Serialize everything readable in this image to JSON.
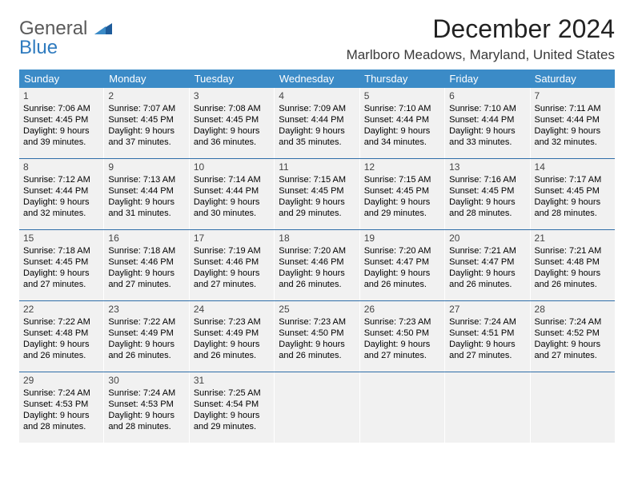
{
  "logo": {
    "line1": "General",
    "line2": "Blue"
  },
  "title": "December 2024",
  "location": "Marlboro Meadows, Maryland, United States",
  "colors": {
    "header_bg": "#3b8bc7",
    "header_text": "#ffffff",
    "cell_bg": "#f1f1f1",
    "week_border": "#2f6ea8",
    "logo_gray": "#5a5a5a",
    "logo_blue": "#2f7bbf"
  },
  "weekdays": [
    "Sunday",
    "Monday",
    "Tuesday",
    "Wednesday",
    "Thursday",
    "Friday",
    "Saturday"
  ],
  "weeks": [
    [
      {
        "day": "1",
        "sunrise": "Sunrise: 7:06 AM",
        "sunset": "Sunset: 4:45 PM",
        "daylight": "Daylight: 9 hours and 39 minutes."
      },
      {
        "day": "2",
        "sunrise": "Sunrise: 7:07 AM",
        "sunset": "Sunset: 4:45 PM",
        "daylight": "Daylight: 9 hours and 37 minutes."
      },
      {
        "day": "3",
        "sunrise": "Sunrise: 7:08 AM",
        "sunset": "Sunset: 4:45 PM",
        "daylight": "Daylight: 9 hours and 36 minutes."
      },
      {
        "day": "4",
        "sunrise": "Sunrise: 7:09 AM",
        "sunset": "Sunset: 4:44 PM",
        "daylight": "Daylight: 9 hours and 35 minutes."
      },
      {
        "day": "5",
        "sunrise": "Sunrise: 7:10 AM",
        "sunset": "Sunset: 4:44 PM",
        "daylight": "Daylight: 9 hours and 34 minutes."
      },
      {
        "day": "6",
        "sunrise": "Sunrise: 7:10 AM",
        "sunset": "Sunset: 4:44 PM",
        "daylight": "Daylight: 9 hours and 33 minutes."
      },
      {
        "day": "7",
        "sunrise": "Sunrise: 7:11 AM",
        "sunset": "Sunset: 4:44 PM",
        "daylight": "Daylight: 9 hours and 32 minutes."
      }
    ],
    [
      {
        "day": "8",
        "sunrise": "Sunrise: 7:12 AM",
        "sunset": "Sunset: 4:44 PM",
        "daylight": "Daylight: 9 hours and 32 minutes."
      },
      {
        "day": "9",
        "sunrise": "Sunrise: 7:13 AM",
        "sunset": "Sunset: 4:44 PM",
        "daylight": "Daylight: 9 hours and 31 minutes."
      },
      {
        "day": "10",
        "sunrise": "Sunrise: 7:14 AM",
        "sunset": "Sunset: 4:44 PM",
        "daylight": "Daylight: 9 hours and 30 minutes."
      },
      {
        "day": "11",
        "sunrise": "Sunrise: 7:15 AM",
        "sunset": "Sunset: 4:45 PM",
        "daylight": "Daylight: 9 hours and 29 minutes."
      },
      {
        "day": "12",
        "sunrise": "Sunrise: 7:15 AM",
        "sunset": "Sunset: 4:45 PM",
        "daylight": "Daylight: 9 hours and 29 minutes."
      },
      {
        "day": "13",
        "sunrise": "Sunrise: 7:16 AM",
        "sunset": "Sunset: 4:45 PM",
        "daylight": "Daylight: 9 hours and 28 minutes."
      },
      {
        "day": "14",
        "sunrise": "Sunrise: 7:17 AM",
        "sunset": "Sunset: 4:45 PM",
        "daylight": "Daylight: 9 hours and 28 minutes."
      }
    ],
    [
      {
        "day": "15",
        "sunrise": "Sunrise: 7:18 AM",
        "sunset": "Sunset: 4:45 PM",
        "daylight": "Daylight: 9 hours and 27 minutes."
      },
      {
        "day": "16",
        "sunrise": "Sunrise: 7:18 AM",
        "sunset": "Sunset: 4:46 PM",
        "daylight": "Daylight: 9 hours and 27 minutes."
      },
      {
        "day": "17",
        "sunrise": "Sunrise: 7:19 AM",
        "sunset": "Sunset: 4:46 PM",
        "daylight": "Daylight: 9 hours and 27 minutes."
      },
      {
        "day": "18",
        "sunrise": "Sunrise: 7:20 AM",
        "sunset": "Sunset: 4:46 PM",
        "daylight": "Daylight: 9 hours and 26 minutes."
      },
      {
        "day": "19",
        "sunrise": "Sunrise: 7:20 AM",
        "sunset": "Sunset: 4:47 PM",
        "daylight": "Daylight: 9 hours and 26 minutes."
      },
      {
        "day": "20",
        "sunrise": "Sunrise: 7:21 AM",
        "sunset": "Sunset: 4:47 PM",
        "daylight": "Daylight: 9 hours and 26 minutes."
      },
      {
        "day": "21",
        "sunrise": "Sunrise: 7:21 AM",
        "sunset": "Sunset: 4:48 PM",
        "daylight": "Daylight: 9 hours and 26 minutes."
      }
    ],
    [
      {
        "day": "22",
        "sunrise": "Sunrise: 7:22 AM",
        "sunset": "Sunset: 4:48 PM",
        "daylight": "Daylight: 9 hours and 26 minutes."
      },
      {
        "day": "23",
        "sunrise": "Sunrise: 7:22 AM",
        "sunset": "Sunset: 4:49 PM",
        "daylight": "Daylight: 9 hours and 26 minutes."
      },
      {
        "day": "24",
        "sunrise": "Sunrise: 7:23 AM",
        "sunset": "Sunset: 4:49 PM",
        "daylight": "Daylight: 9 hours and 26 minutes."
      },
      {
        "day": "25",
        "sunrise": "Sunrise: 7:23 AM",
        "sunset": "Sunset: 4:50 PM",
        "daylight": "Daylight: 9 hours and 26 minutes."
      },
      {
        "day": "26",
        "sunrise": "Sunrise: 7:23 AM",
        "sunset": "Sunset: 4:50 PM",
        "daylight": "Daylight: 9 hours and 27 minutes."
      },
      {
        "day": "27",
        "sunrise": "Sunrise: 7:24 AM",
        "sunset": "Sunset: 4:51 PM",
        "daylight": "Daylight: 9 hours and 27 minutes."
      },
      {
        "day": "28",
        "sunrise": "Sunrise: 7:24 AM",
        "sunset": "Sunset: 4:52 PM",
        "daylight": "Daylight: 9 hours and 27 minutes."
      }
    ],
    [
      {
        "day": "29",
        "sunrise": "Sunrise: 7:24 AM",
        "sunset": "Sunset: 4:53 PM",
        "daylight": "Daylight: 9 hours and 28 minutes."
      },
      {
        "day": "30",
        "sunrise": "Sunrise: 7:24 AM",
        "sunset": "Sunset: 4:53 PM",
        "daylight": "Daylight: 9 hours and 28 minutes."
      },
      {
        "day": "31",
        "sunrise": "Sunrise: 7:25 AM",
        "sunset": "Sunset: 4:54 PM",
        "daylight": "Daylight: 9 hours and 29 minutes."
      },
      {
        "empty": true
      },
      {
        "empty": true
      },
      {
        "empty": true
      },
      {
        "empty": true
      }
    ]
  ]
}
